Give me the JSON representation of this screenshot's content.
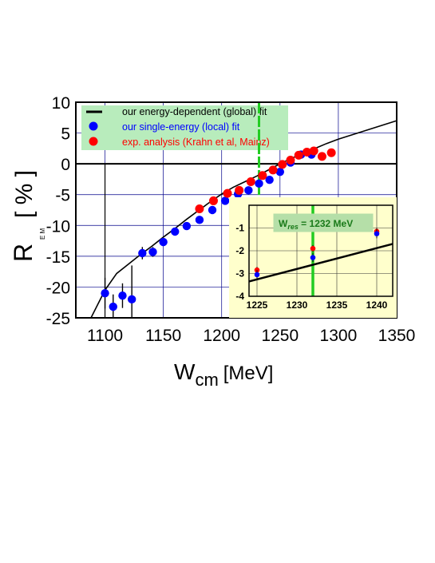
{
  "chart_data": [
    {
      "type": "scatter",
      "xlabel_main": "W",
      "xlabel_sub": "cm",
      "xlabel_unit": "[MeV]",
      "ylabel_main": "R",
      "ylabel_sub": "E M",
      "ylabel_unit": "[ % ]",
      "xlim": [
        1075,
        1350
      ],
      "ylim": [
        -25,
        10
      ],
      "xticks": [
        "1100",
        "1150",
        "1200",
        "1250",
        "1300",
        "1350"
      ],
      "yticks": [
        "10",
        "5",
        "0",
        "-5",
        "-10",
        "-15",
        "-20",
        "-25"
      ],
      "grid": true,
      "legend_placement": "top-left",
      "legend": [
        {
          "label": "our energy-dependent (global) fit",
          "color": "#000000",
          "marker": "line"
        },
        {
          "label": "our single-energy (local) fit",
          "color": "#0000ff",
          "marker": "circle"
        },
        {
          "label": "exp. analysis (Krahn et al, Mainz)",
          "color": "#ff0000",
          "marker": "circle"
        }
      ],
      "resonance_line_x": 1232,
      "series": [
        {
          "name": "our energy-dependent (global) fit",
          "kind": "curve",
          "color": "#000000",
          "x": [
            1100,
            1110,
            1120,
            1130,
            1140,
            1150,
            1160,
            1170,
            1180,
            1190,
            1200,
            1210,
            1220,
            1230,
            1240,
            1250,
            1260,
            1270,
            1280,
            1290,
            1300,
            1310,
            1320,
            1330,
            1340,
            1350
          ],
          "y": [
            -20.5,
            -17.8,
            -16.3,
            -14.8,
            -13.4,
            -11.9,
            -10.5,
            -9.0,
            -7.6,
            -6.2,
            -4.9,
            -3.8,
            -2.9,
            -2.0,
            -1.0,
            0.0,
            0.9,
            1.7,
            2.5,
            3.3,
            4.0,
            4.6,
            5.2,
            5.8,
            6.4,
            7.0
          ]
        },
        {
          "name": "our single-energy (local) fit",
          "kind": "points",
          "color": "#0000ff",
          "x": [
            1100,
            1107,
            1115,
            1123,
            1132,
            1141,
            1150,
            1160,
            1170,
            1181,
            1192,
            1203,
            1214,
            1223,
            1232,
            1241,
            1250,
            1259,
            1268,
            1277
          ],
          "y": [
            -21.0,
            -23.2,
            -21.4,
            -22.0,
            -14.5,
            -14.3,
            -12.7,
            -11.0,
            -10.1,
            -9.1,
            -7.5,
            -6.0,
            -4.9,
            -4.3,
            -3.2,
            -2.6,
            -1.3,
            0.2,
            1.5,
            1.5
          ],
          "yerr": [
            2.5,
            2.0,
            2.0,
            5.5,
            1.0,
            0.8,
            0.6,
            0.5,
            0.5,
            0.4,
            0.4,
            0.4,
            0.4,
            0.4,
            0.4,
            0.4,
            0.4,
            0.4,
            0.4,
            0.4
          ]
        },
        {
          "name": "exp. analysis (Krahn et al, Mainz)",
          "kind": "points",
          "color": "#ff0000",
          "x": [
            1181,
            1193,
            1205,
            1215,
            1225,
            1235,
            1244,
            1252,
            1259,
            1266,
            1273,
            1279,
            1286,
            1294
          ],
          "y": [
            -7.3,
            -6.0,
            -4.8,
            -4.3,
            -2.9,
            -1.9,
            -1.0,
            -0.1,
            0.6,
            1.4,
            1.9,
            2.1,
            1.2,
            1.8
          ]
        }
      ]
    },
    {
      "type": "scatter",
      "xlim": [
        1224,
        1242
      ],
      "ylim": [
        -4,
        0
      ],
      "xticks": [
        "1225",
        "1230",
        "1235",
        "1240"
      ],
      "yticks": [
        "-1",
        "-2",
        "-3",
        "-4"
      ],
      "grid": true,
      "annotation": {
        "main": "W",
        "sub": "res",
        "value": " = 1232 MeV"
      },
      "resonance_line_x": 1232,
      "series": [
        {
          "name": "our energy-dependent (global) fit",
          "kind": "curve",
          "color": "#000000",
          "x": [
            1224,
            1242
          ],
          "y": [
            -3.35,
            -1.7
          ]
        },
        {
          "name": "our single-energy (local) fit",
          "kind": "points",
          "color": "#0000ff",
          "x": [
            1225,
            1232,
            1240
          ],
          "y": [
            -3.05,
            -2.3,
            -1.25
          ],
          "yerr": [
            0.2,
            0.2,
            0.2
          ]
        },
        {
          "name": "exp. analysis (Krahn et al, Mainz)",
          "kind": "points",
          "color": "#ff0000",
          "x": [
            1225,
            1232,
            1240
          ],
          "y": [
            -2.85,
            -1.9,
            -1.15
          ],
          "yerr": [
            0.15,
            0.15,
            0.15
          ]
        }
      ]
    }
  ]
}
